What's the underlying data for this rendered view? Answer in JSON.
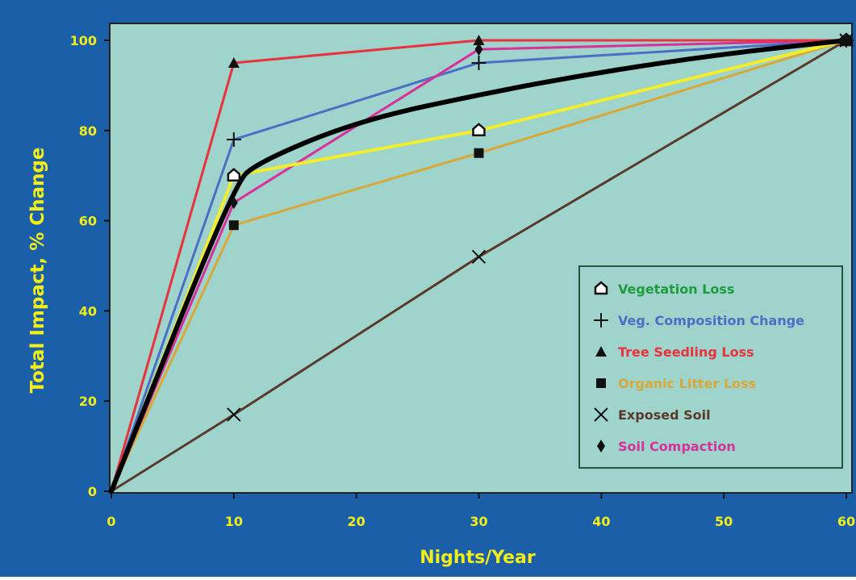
{
  "colors": {
    "frame": "#1a5fa8",
    "plot_bg": "#9fd4cc",
    "axis_text": "#f2ee1c",
    "legend_border": "#1f5a3a",
    "total_line": "#000000"
  },
  "chart_data": {
    "type": "line",
    "title": "",
    "xlabel": "Nights/Year",
    "ylabel": "Total Impact, % Change",
    "xlim": [
      0,
      60
    ],
    "ylim": [
      0,
      100
    ],
    "x_ticks": [
      "0",
      "10",
      "20",
      "30",
      "40",
      "50",
      "60"
    ],
    "y_ticks": [
      "0",
      "20",
      "40",
      "60",
      "80",
      "100"
    ],
    "legend_position": "bottom-right",
    "series": [
      {
        "name": "Vegetation Loss",
        "color": "#1e9b3c",
        "marker": "open-pentagon",
        "x": [
          0,
          10,
          30,
          60
        ],
        "y": [
          0,
          70,
          80,
          100
        ]
      },
      {
        "name": "Veg. Composition Change",
        "color": "#4a6fc4",
        "marker": "plus",
        "x": [
          0,
          10,
          30,
          60
        ],
        "y": [
          0,
          78,
          95,
          100
        ]
      },
      {
        "name": "Tree Seedling Loss",
        "color": "#e8323c",
        "marker": "triangle",
        "x": [
          0,
          10,
          30,
          60
        ],
        "y": [
          0,
          95,
          100,
          100
        ]
      },
      {
        "name": "Organic Litter Loss",
        "color": "#d8a838",
        "marker": "square",
        "x": [
          0,
          10,
          30,
          60
        ],
        "y": [
          0,
          59,
          75,
          100
        ]
      },
      {
        "name": "Exposed Soil",
        "color": "#5a3a2a",
        "marker": "x",
        "x": [
          0,
          10,
          30,
          60
        ],
        "y": [
          0,
          17,
          52,
          100
        ]
      },
      {
        "name": "Soil Compaction",
        "color": "#d8309a",
        "marker": "diamond",
        "x": [
          0,
          10,
          30,
          60
        ],
        "y": [
          0,
          64,
          98,
          100
        ]
      }
    ],
    "extra_lines": [
      {
        "id": "average-curve",
        "color": "#000000",
        "x": [
          0,
          10,
          12,
          20,
          30,
          40,
          50,
          60
        ],
        "y": [
          0,
          68,
          73,
          82,
          88,
          93,
          97,
          100
        ]
      },
      {
        "id": "yellow-line",
        "color": "#f4ee2a",
        "x": [
          0,
          10,
          30,
          60
        ],
        "y": [
          0,
          70,
          80,
          100
        ]
      }
    ]
  }
}
